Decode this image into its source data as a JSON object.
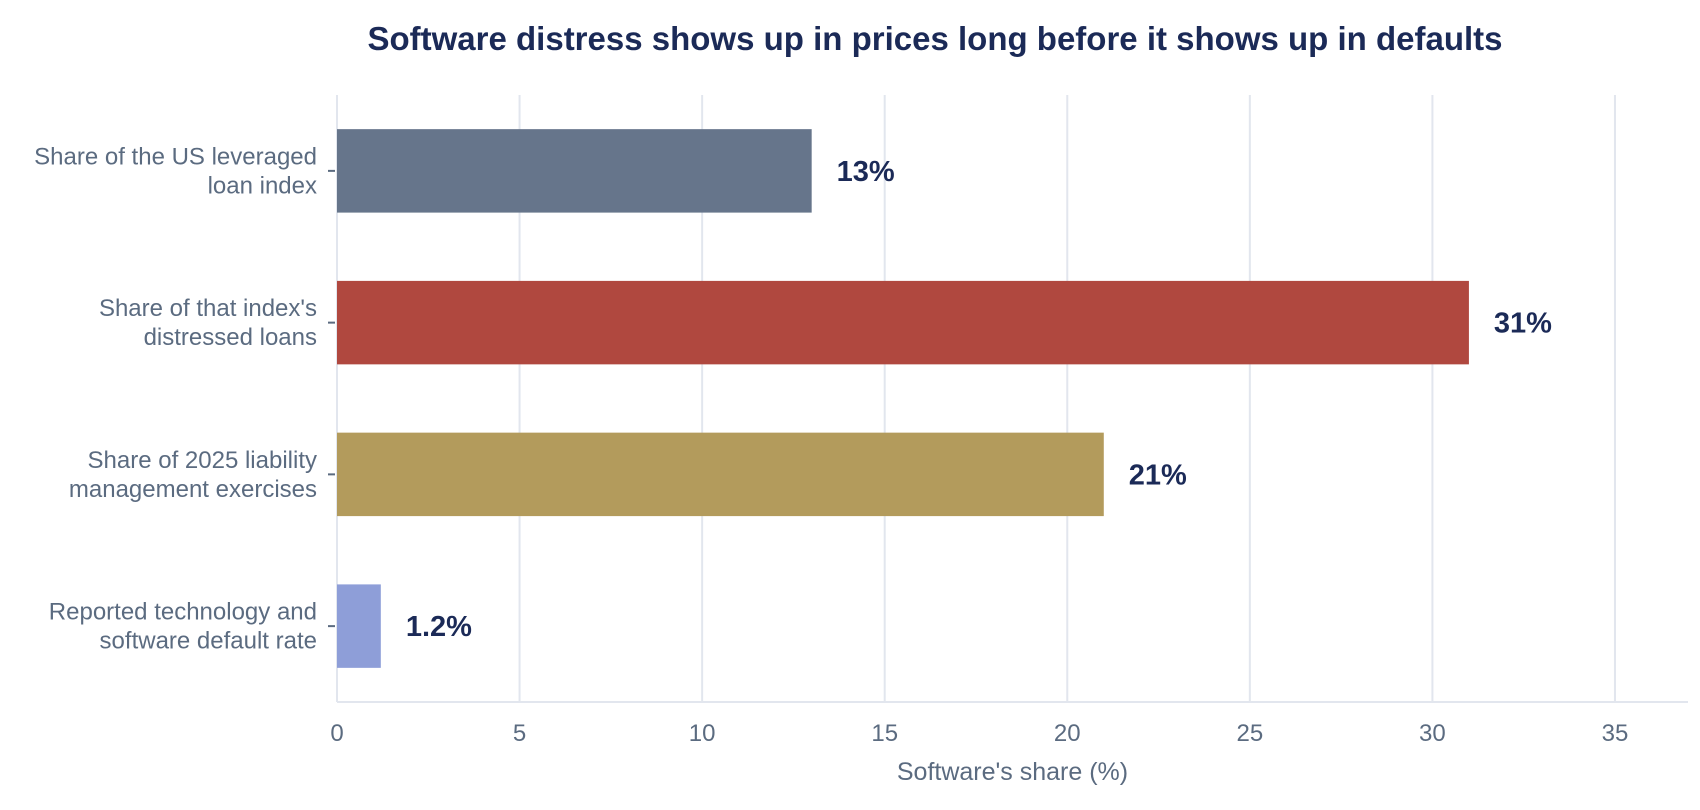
{
  "chart_data": {
    "type": "bar",
    "orientation": "horizontal",
    "title": "Software distress shows up in prices long before it shows up in defaults",
    "xlabel": "Software's share (%)",
    "ylabel": "",
    "xlim": [
      0,
      37
    ],
    "xticks": [
      0,
      5,
      10,
      15,
      20,
      25,
      30,
      35
    ],
    "grid": "vertical",
    "categories": [
      [
        "Share of the US leveraged",
        "loan index"
      ],
      [
        "Share of that index's",
        "distressed loans"
      ],
      [
        "Share of 2025 liability",
        "management exercises"
      ],
      [
        "Reported technology and",
        "software default rate"
      ]
    ],
    "values": [
      13,
      31,
      21,
      1.2
    ],
    "data_labels": [
      "13%",
      "31%",
      "21%",
      "1.2%"
    ],
    "colors": [
      "#66758b",
      "#b0483f",
      "#b39b5c",
      "#8e9ed8"
    ]
  }
}
